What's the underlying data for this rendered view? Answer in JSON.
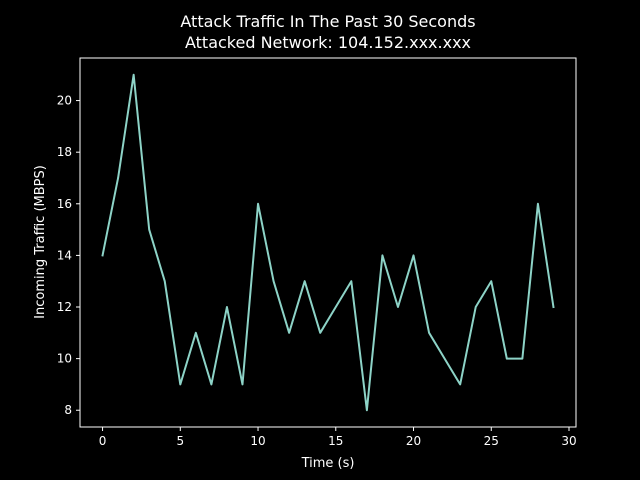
{
  "chart_data": {
    "type": "line",
    "title_line1": "Attack Traffic In The Past 30 Seconds",
    "title_line2": "Attacked Network: 104.152.xxx.xxx",
    "xlabel": "Time (s)",
    "ylabel": "Incoming Traffic (MBPS)",
    "xlim": [
      -1.45,
      30.45
    ],
    "ylim": [
      7.35,
      21.65
    ],
    "xticks": [
      0,
      5,
      10,
      15,
      20,
      25,
      30
    ],
    "yticks": [
      8,
      10,
      12,
      14,
      16,
      18,
      20
    ],
    "grid": false,
    "series": [
      {
        "color": "#8dd3c7",
        "x": [
          0,
          1,
          2,
          3,
          4,
          5,
          6,
          7,
          8,
          9,
          10,
          11,
          12,
          13,
          14,
          15,
          16,
          17,
          18,
          19,
          20,
          21,
          22,
          23,
          24,
          25,
          26,
          27,
          28,
          29
        ],
        "values": [
          14,
          17,
          21,
          15,
          13,
          9,
          11,
          9,
          12,
          9,
          16,
          13,
          11,
          13,
          11,
          12,
          13,
          8,
          14,
          12,
          14,
          11,
          10,
          9,
          12,
          13,
          10,
          10,
          16,
          12
        ]
      }
    ]
  },
  "colors": {
    "background": "#000000",
    "foreground": "#ffffff",
    "line": "#8dd3c7"
  }
}
